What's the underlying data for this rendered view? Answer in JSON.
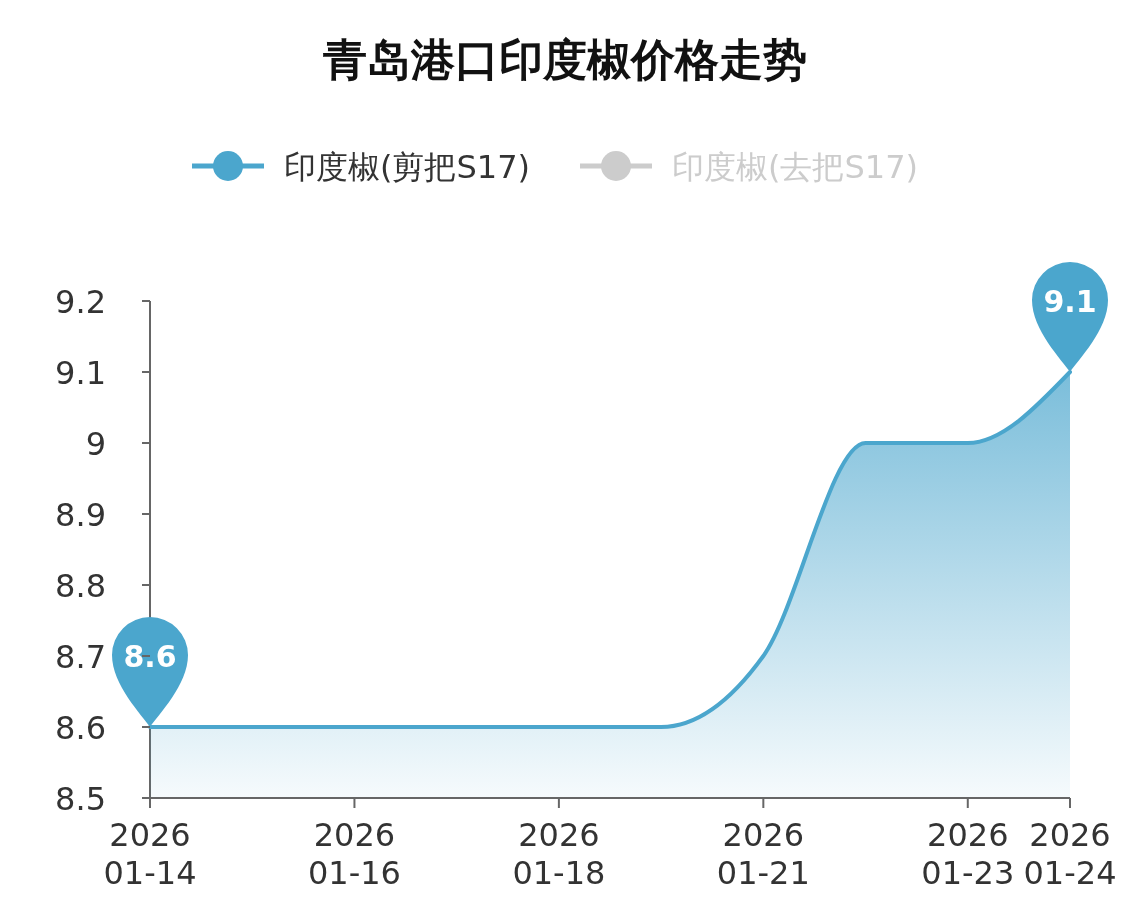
{
  "chart_data": {
    "type": "area",
    "title": "青岛港口印度椒价格走势",
    "categories": [
      "2026\n01-14",
      null,
      "2026\n01-16",
      null,
      "2026\n01-18",
      null,
      "2026\n01-21",
      null,
      "2026\n01-23",
      "2026\n01-24"
    ],
    "series": [
      {
        "name": "印度椒(剪把S17)",
        "color": "#4ba6cd",
        "values": [
          8.6,
          8.6,
          8.6,
          8.6,
          8.6,
          8.6,
          8.7,
          9.0,
          9.0,
          9.1
        ],
        "value_labels": [
          "8.6",
          null,
          null,
          null,
          null,
          null,
          null,
          null,
          null,
          "9.1"
        ]
      },
      {
        "name": "印度椒(去把S17)",
        "color": "#cccccc",
        "values": [
          null,
          null,
          null,
          null,
          null,
          null,
          null,
          null,
          null,
          null
        ]
      }
    ],
    "ylim": [
      8.5,
      9.2
    ],
    "yticks": [
      8.5,
      8.6,
      8.7,
      8.8,
      8.9,
      9,
      9.1,
      9.2
    ],
    "grid": false,
    "legend": "top",
    "marker": "none"
  }
}
